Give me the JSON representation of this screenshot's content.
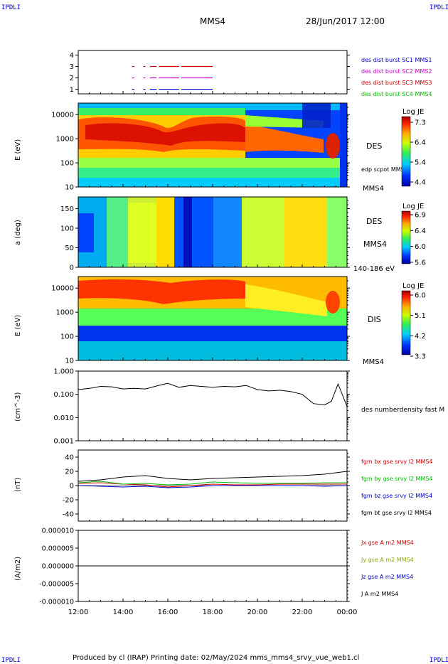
{
  "corner": "IPDLI",
  "header": {
    "spacecraft": "MMS4",
    "datetime": "28/Jun/2017 12:00"
  },
  "footer": "Produced by cl (IRAP)   Printing date: 02/May/2024   mms_mms4_srvy_vue_web1.cl",
  "x_axis": {
    "ticks": [
      "12:00",
      "14:00",
      "16:00",
      "18:00",
      "20:00",
      "22:00",
      "00:00"
    ],
    "start_hour": 12,
    "end_hour": 24
  },
  "panels": {
    "burst": {
      "ticks": [
        "1",
        "2",
        "3",
        "4"
      ],
      "labels": [
        {
          "text": "des dist burst SC1 MMS1",
          "color": "#0000cc"
        },
        {
          "text": "des dist burst SC2 MMS2",
          "color": "#cc00cc"
        },
        {
          "text": "des dist burst SC3 MMS3",
          "color": "#cc0000"
        },
        {
          "text": "des dist burst SC4 MMS4",
          "color": "#00bb00"
        }
      ]
    },
    "des_energy": {
      "ylabel": "E (eV)",
      "ticks": [
        "10",
        "100",
        "1000",
        "10000"
      ],
      "right_label": "DES",
      "extra_label": "edp scpot MMS4",
      "sc_label": "MMS4",
      "cbar_title": "Log JE",
      "cbar_ticks": [
        "4.4",
        "5.4",
        "6.4",
        "7.3"
      ]
    },
    "des_pitch": {
      "ylabel": "a (deg)",
      "ticks": [
        "0",
        "50",
        "100",
        "150"
      ],
      "right_label": "DES",
      "sc_label": "MMS4",
      "energy_label": "140-186 eV",
      "cbar_title": "Log JE",
      "cbar_ticks": [
        "5.6",
        "6.0",
        "6.4",
        "6.9"
      ]
    },
    "dis_energy": {
      "ylabel": "E (eV)",
      "ticks": [
        "10",
        "100",
        "1000",
        "10000"
      ],
      "right_label": "DIS",
      "sc_label": "MMS4",
      "cbar_title": "Log JE",
      "cbar_ticks": [
        "3.3",
        "4.2",
        "5.1",
        "6.0"
      ]
    },
    "density": {
      "ylabel": "(cm^-3)",
      "ticks": [
        "0.001",
        "0.010",
        "0.100",
        "1.000"
      ],
      "label": "des numberdensity fast M"
    },
    "bfield": {
      "ylabel": "(nT)",
      "ticks": [
        "-40",
        "-20",
        "0",
        "20",
        "40"
      ],
      "labels": [
        {
          "text": "fgm bx gse srvy l2 MMS4",
          "color": "#cc0000"
        },
        {
          "text": "fgm by gse srvy l2 MMS4",
          "color": "#00bb00"
        },
        {
          "text": "fgm bz gse srvy l2 MMS4",
          "color": "#0000cc"
        },
        {
          "text": "fgm bt gse srvy l2 MMS4",
          "color": "#000000"
        }
      ]
    },
    "current": {
      "ylabel": "(A/m2)",
      "ticks": [
        "-0.000010",
        "-0.000005",
        "0.000000",
        "0.000005",
        "0.000010"
      ],
      "labels": [
        {
          "text": "Jx gse A m2 MMS4",
          "color": "#cc0000"
        },
        {
          "text": "Jy gse A m2 MMS4",
          "color": "#88aa00"
        },
        {
          "text": "Jz gse A m2 MMS4",
          "color": "#0000cc"
        },
        {
          "text": "J A m2 MMS4",
          "color": "#000000"
        }
      ]
    }
  },
  "chart_data": [
    {
      "type": "scatter",
      "panel": "burst",
      "x_unit": "hour",
      "rows": [
        {
          "sc": 1,
          "color": "#0000cc",
          "segments": [
            [
              14.4,
              14.5
            ],
            [
              14.9,
              15.0
            ],
            [
              15.2,
              15.5
            ],
            [
              15.6,
              16.5
            ],
            [
              16.6,
              18.0
            ]
          ]
        },
        {
          "sc": 2,
          "color": "#cc00cc",
          "segments": [
            [
              14.4,
              14.5
            ],
            [
              14.9,
              15.0
            ],
            [
              15.2,
              15.5
            ],
            [
              15.6,
              16.5
            ],
            [
              16.6,
              18.0
            ]
          ]
        },
        {
          "sc": 3,
          "color": "#cc0000",
          "segments": [
            [
              14.4,
              14.5
            ],
            [
              14.9,
              15.0
            ],
            [
              15.2,
              15.5
            ],
            [
              15.6,
              16.5
            ],
            [
              16.6,
              18.0
            ]
          ]
        }
      ]
    },
    {
      "type": "heatmap",
      "panel": "des_energy",
      "ylim": [
        10,
        30000
      ],
      "zlim": [
        4.4,
        7.3
      ],
      "peak_energy_profile": [
        [
          12,
          1300
        ],
        [
          13,
          1200
        ],
        [
          14,
          1000
        ],
        [
          15,
          1100
        ],
        [
          16,
          800
        ],
        [
          16.6,
          800
        ],
        [
          17,
          1300
        ],
        [
          18,
          1400
        ],
        [
          19,
          1400
        ],
        [
          19.5,
          1500
        ],
        [
          20,
          900
        ],
        [
          21,
          700
        ],
        [
          22,
          600
        ],
        [
          22.5,
          500
        ],
        [
          23,
          300
        ],
        [
          23.4,
          550
        ],
        [
          23.7,
          700
        ],
        [
          24,
          200
        ]
      ]
    },
    {
      "type": "heatmap",
      "panel": "des_pitch",
      "ylim": [
        0,
        180
      ],
      "zlim": [
        5.6,
        6.9
      ]
    },
    {
      "type": "heatmap",
      "panel": "dis_energy",
      "ylim": [
        10,
        30000
      ],
      "zlim": [
        3.3,
        6.0
      ],
      "peak_energy_profile": [
        [
          12,
          9000
        ],
        [
          14,
          8000
        ],
        [
          16,
          8000
        ],
        [
          18,
          9000
        ],
        [
          20,
          7000
        ],
        [
          21,
          5000
        ],
        [
          22,
          3500
        ],
        [
          23,
          2500
        ],
        [
          23.5,
          1500
        ],
        [
          24,
          1000
        ]
      ]
    },
    {
      "type": "line",
      "panel": "density",
      "name": "des numberdensity fast M",
      "ylim": [
        0.001,
        1.0
      ],
      "log": true,
      "x": [
        12.0,
        12.5,
        13.0,
        13.5,
        14.0,
        14.5,
        15.0,
        15.5,
        16.0,
        16.5,
        17.0,
        17.5,
        18.0,
        18.5,
        19.0,
        19.5,
        20.0,
        20.5,
        21.0,
        21.5,
        22.0,
        22.5,
        23.0,
        23.3,
        23.6,
        24.0
      ],
      "y": [
        0.16,
        0.18,
        0.22,
        0.21,
        0.17,
        0.18,
        0.17,
        0.23,
        0.3,
        0.2,
        0.24,
        0.22,
        0.2,
        0.22,
        0.21,
        0.24,
        0.16,
        0.14,
        0.15,
        0.13,
        0.1,
        0.04,
        0.035,
        0.05,
        0.28,
        0.03
      ]
    },
    {
      "type": "line",
      "panel": "bfield",
      "ylim": [
        -50,
        50
      ],
      "x": [
        12,
        13,
        14,
        15,
        16,
        17,
        18,
        19,
        20,
        21,
        22,
        23,
        24
      ],
      "series": [
        {
          "name": "fgm bx gse srvy l2 MMS4",
          "color": "#cc0000",
          "values": [
            3,
            4,
            2,
            1,
            -2,
            0,
            2,
            1,
            1,
            2,
            2,
            2,
            2
          ]
        },
        {
          "name": "fgm by gse srvy l2 MMS4",
          "color": "#00bb00",
          "values": [
            4,
            6,
            2,
            3,
            1,
            2,
            5,
            4,
            3,
            3,
            3,
            4,
            4
          ]
        },
        {
          "name": "fgm bz gse srvy l2 MMS4",
          "color": "#0000cc",
          "values": [
            0,
            -1,
            -2,
            -1,
            -3,
            -2,
            0,
            0,
            0,
            0,
            0,
            -1,
            0
          ]
        },
        {
          "name": "fgm bt gse srvy l2 MMS4",
          "color": "#000000",
          "values": [
            6,
            8,
            12,
            14,
            10,
            8,
            10,
            11,
            12,
            13,
            14,
            16,
            20
          ]
        }
      ]
    },
    {
      "type": "line",
      "panel": "current",
      "ylim": [
        -1e-05,
        1e-05
      ],
      "series": [
        {
          "name": "J A m2 MMS4",
          "color": "#000000",
          "values": [
            0,
            0,
            0,
            0,
            0,
            0,
            0,
            0,
            0,
            0,
            0,
            0,
            0
          ]
        }
      ]
    }
  ]
}
